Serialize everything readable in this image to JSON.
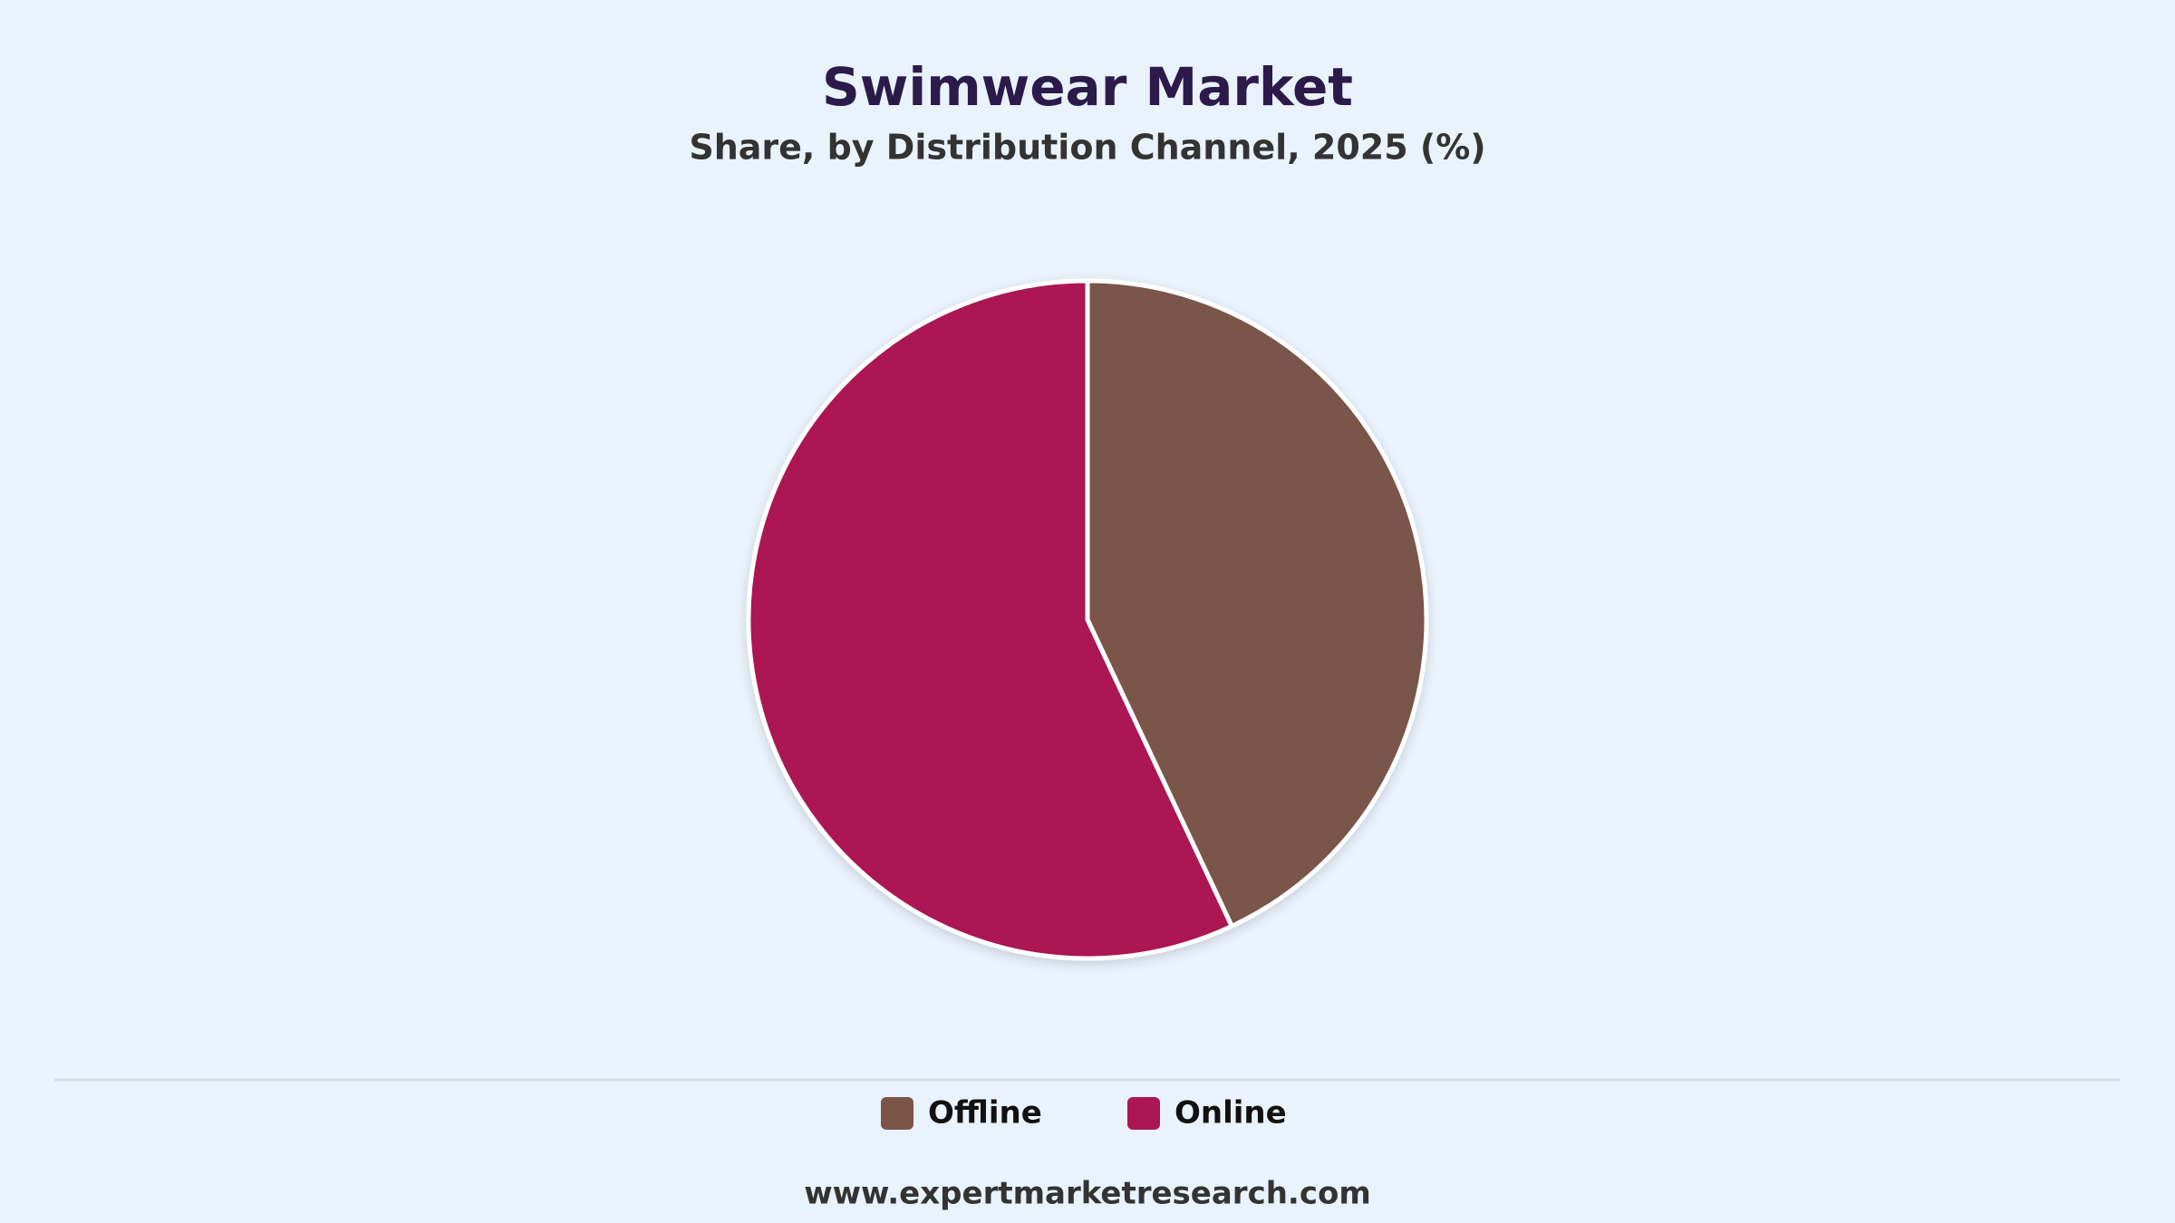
{
  "chart_data": {
    "type": "pie",
    "title": "Swimwear Market",
    "subtitle": "Share, by Distribution Channel, 2025 (%)",
    "categories": [
      "Offline",
      "Online"
    ],
    "values": [
      43,
      57
    ],
    "colors": [
      "#7a5548",
      "#ab1653"
    ],
    "legend": "bottom",
    "source": "www.expertmarketresearch.com"
  }
}
